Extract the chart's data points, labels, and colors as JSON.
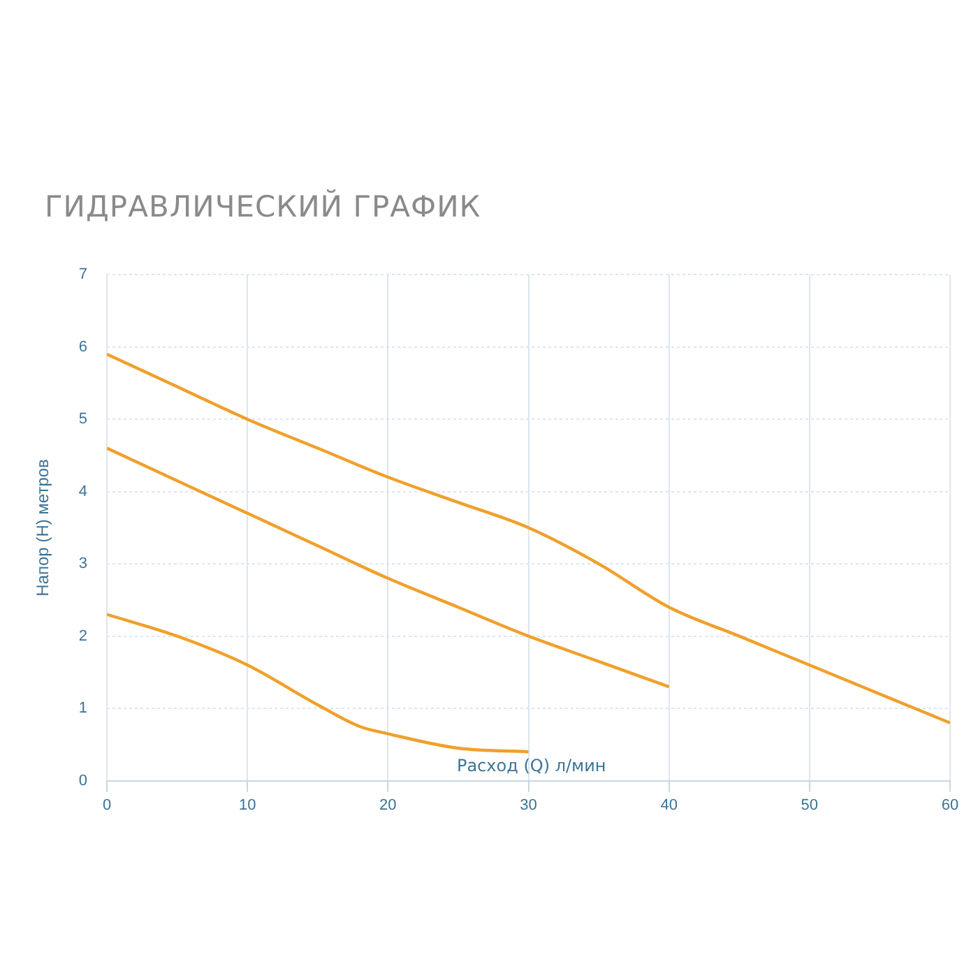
{
  "chart_data": {
    "type": "line",
    "title": "ГИДРАВЛИЧЕСКИЙ ГРАФИК",
    "xlabel": "Расход (Q) л/мин",
    "ylabel": "Напор (H) метров",
    "xlim": [
      0,
      60
    ],
    "xticks": [
      0,
      10,
      20,
      30,
      40,
      50,
      60
    ],
    "ylim": [
      0,
      7
    ],
    "yticks": [
      0,
      1,
      2,
      3,
      4,
      5,
      6,
      7
    ],
    "grid": true,
    "legend": false,
    "marker": "none",
    "line_style": "solid",
    "series": [
      {
        "color": "#f0a02c",
        "x": [
          0,
          5,
          10,
          15,
          20,
          25,
          30,
          35,
          40,
          45,
          50,
          55,
          60
        ],
        "values": [
          5.9,
          5.45,
          5.0,
          4.6,
          4.2,
          3.85,
          3.5,
          3.0,
          2.4,
          2.0,
          1.6,
          1.2,
          0.8
        ]
      },
      {
        "color": "#f0a02c",
        "x": [
          0,
          5,
          10,
          15,
          20,
          25,
          30,
          35,
          40
        ],
        "values": [
          4.6,
          4.15,
          3.7,
          3.25,
          2.8,
          2.4,
          2.0,
          1.65,
          1.3
        ]
      },
      {
        "color": "#f0a02c",
        "x": [
          0,
          5,
          10,
          15,
          18,
          20,
          25,
          30
        ],
        "values": [
          2.3,
          2.0,
          1.6,
          1.05,
          0.75,
          0.65,
          0.45,
          0.4
        ]
      }
    ]
  }
}
